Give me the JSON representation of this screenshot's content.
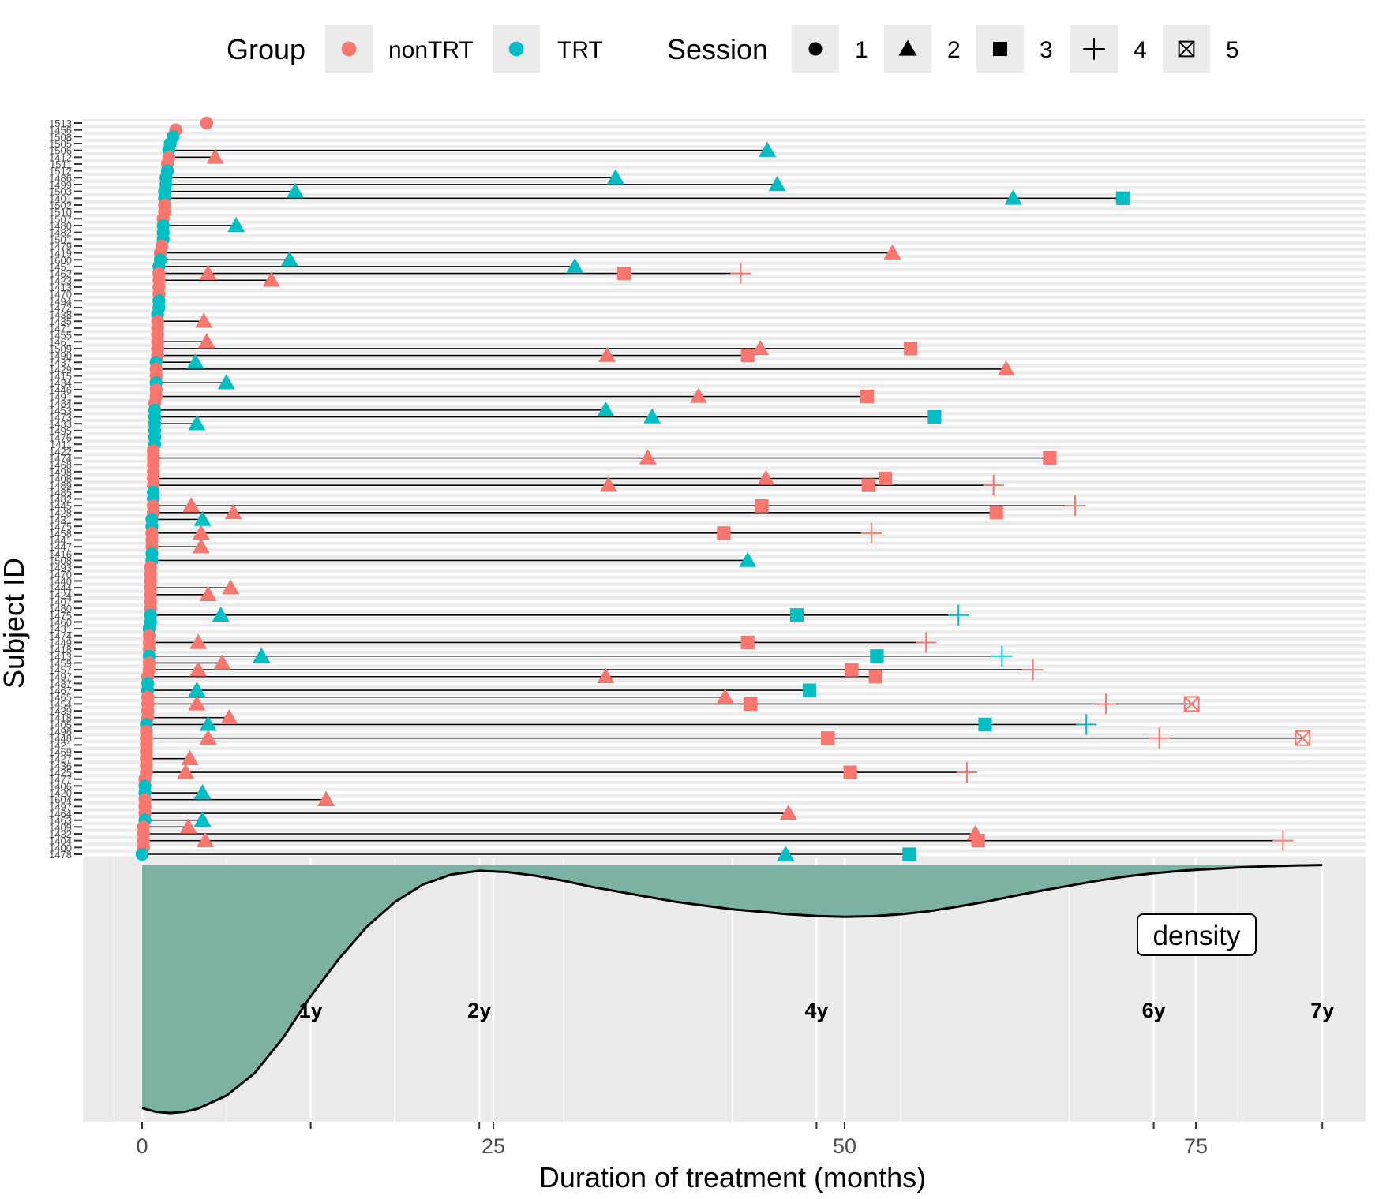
{
  "chart_data": {
    "type": "scatter",
    "title": "",
    "xlabel": "Duration of treatment (months)",
    "ylabel": "Subject ID",
    "xlim": [
      -4,
      87.5
    ],
    "x_ticks": [
      0,
      25,
      50,
      75
    ],
    "year_markers": [
      {
        "label": "1y",
        "x": 12
      },
      {
        "label": "2y",
        "x": 24
      },
      {
        "label": "4y",
        "x": 48
      },
      {
        "label": "6y",
        "x": 72
      },
      {
        "label": "7y",
        "x": 84
      }
    ],
    "density_label": "density",
    "density_curve": [
      [
        0,
        0.02
      ],
      [
        1,
        0.004
      ],
      [
        2,
        0.0
      ],
      [
        3,
        0.004
      ],
      [
        4,
        0.018
      ],
      [
        6,
        0.07
      ],
      [
        8,
        0.16
      ],
      [
        10,
        0.3
      ],
      [
        12,
        0.47
      ],
      [
        14,
        0.62
      ],
      [
        16,
        0.75
      ],
      [
        18,
        0.85
      ],
      [
        20,
        0.92
      ],
      [
        22,
        0.96
      ],
      [
        24,
        0.975
      ],
      [
        26,
        0.97
      ],
      [
        28,
        0.955
      ],
      [
        30,
        0.935
      ],
      [
        32,
        0.91
      ],
      [
        34,
        0.89
      ],
      [
        36,
        0.87
      ],
      [
        38,
        0.85
      ],
      [
        40,
        0.835
      ],
      [
        42,
        0.82
      ],
      [
        44,
        0.81
      ],
      [
        46,
        0.8
      ],
      [
        48,
        0.793
      ],
      [
        50,
        0.79
      ],
      [
        52,
        0.792
      ],
      [
        54,
        0.8
      ],
      [
        56,
        0.812
      ],
      [
        58,
        0.83
      ],
      [
        60,
        0.85
      ],
      [
        62,
        0.873
      ],
      [
        64,
        0.895
      ],
      [
        66,
        0.915
      ],
      [
        68,
        0.935
      ],
      [
        70,
        0.952
      ],
      [
        72,
        0.965
      ],
      [
        74,
        0.975
      ],
      [
        76,
        0.982
      ],
      [
        78,
        0.988
      ],
      [
        80,
        0.993
      ],
      [
        82,
        0.996
      ],
      [
        84,
        0.998
      ]
    ],
    "legend": {
      "placement": "top",
      "group_title": "Group",
      "group_items": [
        {
          "label": "nonTRT",
          "color": "#F8766D"
        },
        {
          "label": "TRT",
          "color": "#00BFC4"
        }
      ],
      "session_title": "Session",
      "session_items": [
        {
          "label": "1",
          "shape": "circle"
        },
        {
          "label": "2",
          "shape": "triangle"
        },
        {
          "label": "3",
          "shape": "square"
        },
        {
          "label": "4",
          "shape": "plus"
        },
        {
          "label": "5",
          "shape": "boxed-x"
        }
      ]
    },
    "subjects": [
      {
        "id": "1513",
        "g": "nonTRT",
        "s": [
          4.6
        ]
      },
      {
        "id": "1456",
        "g": "nonTRT",
        "s": [
          2.4
        ]
      },
      {
        "id": "1508",
        "g": "TRT",
        "s": [
          2.2
        ]
      },
      {
        "id": "1505",
        "g": "TRT",
        "s": [
          2.0
        ]
      },
      {
        "id": "1506",
        "g": "TRT",
        "s": [
          1.9,
          44.5
        ]
      },
      {
        "id": "1412",
        "g": "nonTRT",
        "s": [
          1.9,
          5.2
        ]
      },
      {
        "id": "1511",
        "g": "nonTRT",
        "s": [
          1.8
        ]
      },
      {
        "id": "1512",
        "g": "TRT",
        "s": [
          1.8
        ]
      },
      {
        "id": "1486",
        "g": "TRT",
        "s": [
          1.7,
          33.7
        ]
      },
      {
        "id": "1499",
        "g": "TRT",
        "s": [
          1.7,
          45.2
        ]
      },
      {
        "id": "1503",
        "g": "TRT",
        "s": [
          1.6,
          10.9
        ]
      },
      {
        "id": "1401",
        "g": "TRT",
        "s": [
          1.6,
          62.0,
          69.8
        ]
      },
      {
        "id": "1502",
        "g": "nonTRT",
        "s": [
          1.6
        ]
      },
      {
        "id": "1510",
        "g": "nonTRT",
        "s": [
          1.6
        ]
      },
      {
        "id": "1507",
        "g": "nonTRT",
        "s": [
          1.5
        ]
      },
      {
        "id": "1480",
        "g": "TRT",
        "s": [
          1.5,
          6.7
        ]
      },
      {
        "id": "1482",
        "g": "TRT",
        "s": [
          1.5
        ]
      },
      {
        "id": "1501",
        "g": "TRT",
        "s": [
          1.5
        ]
      },
      {
        "id": "1479",
        "g": "nonTRT",
        "s": [
          1.4
        ]
      },
      {
        "id": "1419",
        "g": "nonTRT",
        "s": [
          1.3,
          53.4
        ]
      },
      {
        "id": "1600",
        "g": "TRT",
        "s": [
          1.3,
          10.5
        ]
      },
      {
        "id": "1451",
        "g": "TRT",
        "s": [
          1.2,
          30.8
        ]
      },
      {
        "id": "1462",
        "g": "nonTRT",
        "s": [
          1.2,
          4.7,
          34.3,
          42.6
        ]
      },
      {
        "id": "1423",
        "g": "nonTRT",
        "s": [
          1.2,
          9.2
        ]
      },
      {
        "id": "1413",
        "g": "nonTRT",
        "s": [
          1.2
        ]
      },
      {
        "id": "1470",
        "g": "nonTRT",
        "s": [
          1.2
        ]
      },
      {
        "id": "1494",
        "g": "TRT",
        "s": [
          1.2
        ]
      },
      {
        "id": "1472",
        "g": "TRT",
        "s": [
          1.2
        ]
      },
      {
        "id": "1438",
        "g": "TRT",
        "s": [
          1.1
        ]
      },
      {
        "id": "1435",
        "g": "nonTRT",
        "s": [
          1.1,
          4.4
        ]
      },
      {
        "id": "1471",
        "g": "nonTRT",
        "s": [
          1.1
        ]
      },
      {
        "id": "1455",
        "g": "nonTRT",
        "s": [
          1.1
        ]
      },
      {
        "id": "1461",
        "g": "nonTRT",
        "s": [
          1.1,
          4.6
        ]
      },
      {
        "id": "1509",
        "g": "nonTRT",
        "s": [
          1.1,
          44.0,
          54.7
        ]
      },
      {
        "id": "1490",
        "g": "nonTRT",
        "s": [
          1.1,
          33.1,
          43.1
        ]
      },
      {
        "id": "1437",
        "g": "TRT",
        "s": [
          1.0,
          3.8
        ]
      },
      {
        "id": "1429",
        "g": "nonTRT",
        "s": [
          1.0,
          61.5
        ]
      },
      {
        "id": "1415",
        "g": "nonTRT",
        "s": [
          1.0
        ]
      },
      {
        "id": "1434",
        "g": "TRT",
        "s": [
          1.0,
          6.0
        ]
      },
      {
        "id": "1446",
        "g": "nonTRT",
        "s": [
          1.0
        ]
      },
      {
        "id": "1491",
        "g": "nonTRT",
        "s": [
          1.0,
          39.6,
          51.6
        ]
      },
      {
        "id": "1484",
        "g": "nonTRT",
        "s": [
          0.9
        ]
      },
      {
        "id": "1453",
        "g": "TRT",
        "s": [
          0.9,
          33.0
        ]
      },
      {
        "id": "1473",
        "g": "TRT",
        "s": [
          0.9,
          36.3,
          56.4
        ]
      },
      {
        "id": "1433",
        "g": "TRT",
        "s": [
          0.9,
          3.9
        ]
      },
      {
        "id": "1495",
        "g": "TRT",
        "s": [
          0.9
        ]
      },
      {
        "id": "1476",
        "g": "TRT",
        "s": [
          0.9
        ]
      },
      {
        "id": "1411",
        "g": "TRT",
        "s": [
          0.9
        ]
      },
      {
        "id": "1422",
        "g": "nonTRT",
        "s": [
          0.8
        ]
      },
      {
        "id": "1474",
        "g": "nonTRT",
        "s": [
          0.8,
          36.0,
          64.6
        ]
      },
      {
        "id": "1468",
        "g": "nonTRT",
        "s": [
          0.8
        ]
      },
      {
        "id": "1498",
        "g": "nonTRT",
        "s": [
          0.8
        ]
      },
      {
        "id": "1408",
        "g": "nonTRT",
        "s": [
          0.8,
          44.4,
          52.9
        ]
      },
      {
        "id": "1489",
        "g": "nonTRT",
        "s": [
          0.8,
          33.2,
          51.7,
          60.6
        ]
      },
      {
        "id": "1485",
        "g": "TRT",
        "s": [
          0.8
        ]
      },
      {
        "id": "1482",
        "g": "TRT",
        "s": [
          0.8
        ]
      },
      {
        "id": "1445",
        "g": "nonTRT",
        "s": [
          0.8,
          3.5,
          44.1,
          66.4
        ]
      },
      {
        "id": "1428",
        "g": "nonTRT",
        "s": [
          0.8,
          6.5,
          60.8
        ]
      },
      {
        "id": "1431",
        "g": "TRT",
        "s": [
          0.7,
          4.3
        ]
      },
      {
        "id": "1475",
        "g": "TRT",
        "s": [
          0.7
        ]
      },
      {
        "id": "1458",
        "g": "nonTRT",
        "s": [
          0.7,
          4.2,
          41.4,
          51.9
        ]
      },
      {
        "id": "1441",
        "g": "nonTRT",
        "s": [
          0.7
        ]
      },
      {
        "id": "1447",
        "g": "nonTRT",
        "s": [
          0.7,
          4.2
        ]
      },
      {
        "id": "1416",
        "g": "TRT",
        "s": [
          0.7
        ]
      },
      {
        "id": "1508",
        "g": "TRT",
        "s": [
          0.7,
          43.1
        ]
      },
      {
        "id": "1493",
        "g": "nonTRT",
        "s": [
          0.6
        ]
      },
      {
        "id": "1470",
        "g": "nonTRT",
        "s": [
          0.6
        ]
      },
      {
        "id": "1440",
        "g": "nonTRT",
        "s": [
          0.6
        ]
      },
      {
        "id": "1444",
        "g": "nonTRT",
        "s": [
          0.6,
          6.3
        ]
      },
      {
        "id": "1424",
        "g": "nonTRT",
        "s": [
          0.6,
          4.7
        ]
      },
      {
        "id": "1407",
        "g": "nonTRT",
        "s": [
          0.6
        ]
      },
      {
        "id": "1480",
        "g": "nonTRT",
        "s": [
          0.6
        ]
      },
      {
        "id": "1475",
        "g": "TRT",
        "s": [
          0.6,
          5.6,
          46.6,
          58.1
        ]
      },
      {
        "id": "1460",
        "g": "TRT",
        "s": [
          0.6
        ]
      },
      {
        "id": "1431",
        "g": "TRT",
        "s": [
          0.5
        ]
      },
      {
        "id": "1474",
        "g": "nonTRT",
        "s": [
          0.5
        ]
      },
      {
        "id": "1449",
        "g": "nonTRT",
        "s": [
          0.5,
          4.0,
          43.1,
          55.8
        ]
      },
      {
        "id": "1418",
        "g": "nonTRT",
        "s": [
          0.5
        ]
      },
      {
        "id": "1413",
        "g": "TRT",
        "s": [
          0.5,
          8.5,
          52.3,
          61.2
        ]
      },
      {
        "id": "1459",
        "g": "nonTRT",
        "s": [
          0.5,
          5.7
        ]
      },
      {
        "id": "1457",
        "g": "nonTRT",
        "s": [
          0.5,
          4.0,
          50.5,
          63.4
        ]
      },
      {
        "id": "1497",
        "g": "nonTRT",
        "s": [
          0.4,
          33.0,
          52.2
        ]
      },
      {
        "id": "1487",
        "g": "TRT",
        "s": [
          0.4
        ]
      },
      {
        "id": "1467",
        "g": "TRT",
        "s": [
          0.4,
          3.9,
          47.5
        ]
      },
      {
        "id": "1465",
        "g": "nonTRT",
        "s": [
          0.4,
          41.5
        ]
      },
      {
        "id": "1454",
        "g": "nonTRT",
        "s": [
          0.4,
          3.9,
          43.3,
          68.6,
          74.7
        ]
      },
      {
        "id": "1439",
        "g": "nonTRT",
        "s": [
          0.4
        ]
      },
      {
        "id": "1418",
        "g": "nonTRT",
        "s": [
          0.4,
          6.2
        ]
      },
      {
        "id": "1405",
        "g": "TRT",
        "s": [
          0.3,
          4.7,
          60.0,
          67.2
        ]
      },
      {
        "id": "1496",
        "g": "nonTRT",
        "s": [
          0.3
        ]
      },
      {
        "id": "1448",
        "g": "nonTRT",
        "s": [
          0.3,
          4.7,
          48.8,
          72.4,
          82.6
        ]
      },
      {
        "id": "1421",
        "g": "nonTRT",
        "s": [
          0.3
        ]
      },
      {
        "id": "1469",
        "g": "nonTRT",
        "s": [
          0.3
        ]
      },
      {
        "id": "1427",
        "g": "nonTRT",
        "s": [
          0.3,
          3.4
        ]
      },
      {
        "id": "1436",
        "g": "nonTRT",
        "s": [
          0.3
        ]
      },
      {
        "id": "1425",
        "g": "nonTRT",
        "s": [
          0.3,
          3.1,
          50.4,
          58.7
        ]
      },
      {
        "id": "1477",
        "g": "nonTRT",
        "s": [
          0.2
        ]
      },
      {
        "id": "1406",
        "g": "TRT",
        "s": [
          0.2
        ]
      },
      {
        "id": "1420",
        "g": "TRT",
        "s": [
          0.2,
          4.3
        ]
      },
      {
        "id": "1604",
        "g": "nonTRT",
        "s": [
          0.2,
          13.1
        ]
      },
      {
        "id": "1497",
        "g": "nonTRT",
        "s": [
          0.2
        ]
      },
      {
        "id": "1464",
        "g": "nonTRT",
        "s": [
          0.2,
          46.0
        ]
      },
      {
        "id": "1463",
        "g": "TRT",
        "s": [
          0.2,
          4.3
        ]
      },
      {
        "id": "1409",
        "g": "nonTRT",
        "s": [
          0.1,
          3.3
        ]
      },
      {
        "id": "1432",
        "g": "nonTRT",
        "s": [
          0.1,
          59.3
        ]
      },
      {
        "id": "1404",
        "g": "nonTRT",
        "s": [
          0.1,
          4.5,
          59.5,
          81.2
        ]
      },
      {
        "id": "1400",
        "g": "nonTRT",
        "s": [
          0.1
        ]
      },
      {
        "id": "1478",
        "g": "TRT",
        "s": [
          0.0,
          45.8,
          54.6
        ]
      }
    ]
  }
}
